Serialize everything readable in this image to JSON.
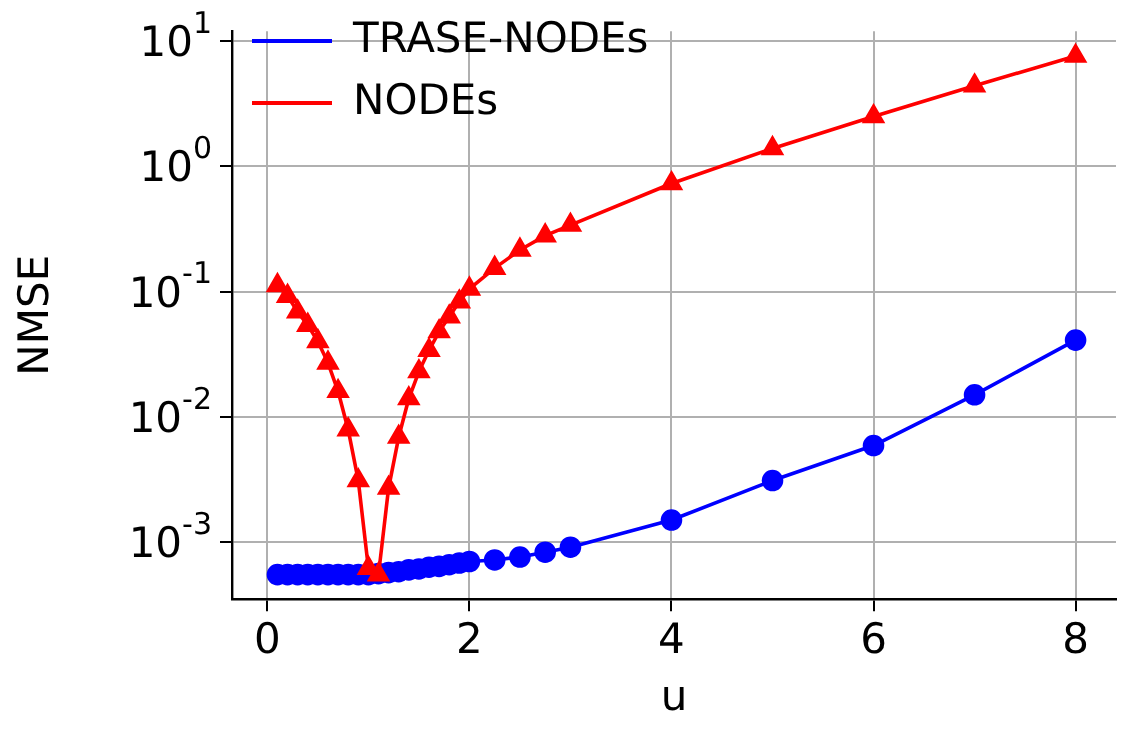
{
  "chart_data": {
    "type": "line",
    "xlabel": "u",
    "ylabel": "NMSE",
    "log": "y",
    "grid": true,
    "legend": "top left",
    "xlim": [
      -0.35,
      8.4
    ],
    "xticks": [
      0,
      2,
      4,
      6,
      8
    ],
    "ylim": [
      0.00035,
      12
    ],
    "yticks": [
      {
        "value": 0.001,
        "label": "10$^{-3}$"
      },
      {
        "value": 0.01,
        "label": "10$^{-2}$"
      },
      {
        "value": 0.1,
        "label": "10$^{-1}$"
      },
      {
        "value": 1,
        "label": "10$^{0}$"
      },
      {
        "value": 10,
        "label": "10$^{1}$"
      }
    ],
    "x": [
      0.1,
      0.2,
      0.3,
      0.4,
      0.5,
      0.6,
      0.7,
      0.8,
      0.9,
      1.0,
      1.1,
      1.2,
      1.3,
      1.4,
      1.5,
      1.6,
      1.7,
      1.8,
      1.9,
      2.0,
      2.25,
      2.5,
      2.75,
      3,
      4,
      5,
      6,
      7,
      8
    ],
    "series": [
      {
        "name": "TRASE-NODEs",
        "color": "#0000ff",
        "marker": "circle",
        "values": [
          0.00055,
          0.00055,
          0.00055,
          0.00055,
          0.00055,
          0.00055,
          0.00055,
          0.00055,
          0.00055,
          0.00055,
          0.00056,
          0.00057,
          0.00058,
          0.0006,
          0.00061,
          0.00063,
          0.00064,
          0.00066,
          0.00068,
          0.0007,
          0.00072,
          0.00076,
          0.00083,
          0.00091,
          0.0015,
          0.0031,
          0.0059,
          0.015,
          0.041
        ]
      },
      {
        "name": "NODEs",
        "color": "#ff0000",
        "marker": "triangle",
        "values": [
          0.112,
          0.092,
          0.069,
          0.054,
          0.04,
          0.027,
          0.016,
          0.0079,
          0.0031,
          0.00062,
          0.00055,
          0.0027,
          0.0069,
          0.014,
          0.023,
          0.034,
          0.048,
          0.063,
          0.083,
          0.105,
          0.154,
          0.215,
          0.28,
          0.34,
          0.73,
          1.39,
          2.5,
          4.4,
          7.6
        ]
      }
    ]
  }
}
